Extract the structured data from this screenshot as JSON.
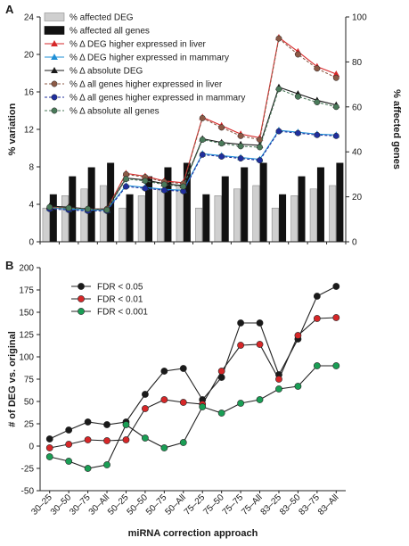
{
  "panel_labels": [
    "A",
    "B"
  ],
  "categories": [
    "30–25",
    "30–50",
    "30–75",
    "30–All",
    "50–25",
    "50–50",
    "50–75",
    "50–All",
    "75–25",
    "75–50",
    "75–75",
    "75–All",
    "83–25",
    "83–50",
    "83–75",
    "83–All"
  ],
  "chart_data": [
    {
      "panel": "A",
      "type": "bar",
      "ylabel": "% variation",
      "y2label": "% affected genes",
      "ylim": [
        0,
        24
      ],
      "yticks": [
        0,
        4,
        8,
        12,
        16,
        20,
        24
      ],
      "y2lim": [
        0,
        100
      ],
      "y2ticks": [
        0,
        20,
        40,
        60,
        80,
        100
      ],
      "legend_position": "top-left",
      "bar_series": [
        {
          "name": "% affected DEG",
          "color": "#cfcfcf",
          "axis": "right",
          "values": [
            15,
            20.5,
            23.5,
            25,
            15,
            20.5,
            23.5,
            25,
            15,
            20.5,
            23.5,
            25,
            15,
            20.5,
            23.5,
            25
          ]
        },
        {
          "name": "% affected all genes",
          "color": "#111111",
          "axis": "right",
          "values": [
            21,
            29,
            33,
            35,
            21,
            29,
            33,
            35,
            21,
            29,
            33,
            35,
            21,
            29,
            33,
            35
          ]
        }
      ],
      "line_series": [
        {
          "name": "% Δ DEG higher expressed in liver",
          "color": "#d62728",
          "marker": "triangle",
          "axis": "left",
          "values": [
            3.7,
            3.7,
            3.5,
            3.5,
            7.3,
            7.0,
            6.5,
            6.3,
            13.3,
            12.4,
            11.5,
            11.1,
            21.8,
            20.3,
            18.7,
            17.9
          ]
        },
        {
          "name": "% Δ DEG higher expressed in mammary",
          "color": "#1f8fd6",
          "marker": "triangle",
          "axis": "left",
          "values": [
            3.6,
            3.5,
            3.4,
            3.4,
            6.0,
            5.8,
            5.6,
            5.5,
            9.4,
            9.2,
            9.0,
            8.8,
            11.9,
            11.7,
            11.5,
            11.4
          ]
        },
        {
          "name": "% Δ absolute DEG",
          "color": "#1a1a1a",
          "marker": "triangle",
          "axis": "left",
          "values": [
            3.8,
            3.7,
            3.5,
            3.5,
            6.8,
            6.6,
            6.2,
            6.0,
            11.0,
            10.6,
            10.4,
            10.3,
            16.5,
            15.8,
            15.1,
            14.6
          ]
        },
        {
          "name": "% Δ all genes higher expressed in liver",
          "color": "#8c5a46",
          "marker": "circle",
          "axis": "left",
          "values": [
            3.6,
            3.6,
            3.5,
            3.5,
            7.2,
            6.9,
            6.4,
            6.2,
            13.2,
            12.2,
            11.3,
            10.9,
            21.7,
            20.0,
            18.5,
            17.5
          ]
        },
        {
          "name": "% Δ all genes higher expressed in mammary",
          "color": "#1f2f9e",
          "marker": "circle",
          "axis": "left",
          "values": [
            3.5,
            3.4,
            3.3,
            3.3,
            5.9,
            5.7,
            5.5,
            5.4,
            9.3,
            9.1,
            8.9,
            8.7,
            11.8,
            11.6,
            11.4,
            11.3
          ]
        },
        {
          "name": "% Δ absolute all genes",
          "color": "#4a7a5a",
          "marker": "circle",
          "axis": "left",
          "values": [
            3.7,
            3.6,
            3.5,
            3.4,
            6.7,
            6.5,
            6.1,
            5.9,
            10.9,
            10.5,
            10.2,
            10.1,
            16.3,
            15.5,
            14.9,
            14.4
          ]
        }
      ]
    },
    {
      "panel": "B",
      "type": "line",
      "xlabel": "miRNA correction approach",
      "ylabel": "# of DEG vs. original",
      "ylim": [
        -50,
        200
      ],
      "yticks": [
        -50,
        -25,
        0,
        25,
        50,
        75,
        100,
        125,
        150,
        175,
        200
      ],
      "legend_position": "top-left",
      "series": [
        {
          "name": "FDR < 0.05",
          "color": "#1a1a1a",
          "values": [
            8,
            18,
            27,
            24,
            27,
            58,
            84,
            87,
            52,
            77,
            138,
            138,
            80,
            120,
            168,
            179
          ]
        },
        {
          "name": "FDR < 0.01",
          "color": "#d62728",
          "values": [
            -2,
            2,
            7,
            6,
            7,
            42,
            52,
            49,
            47,
            84,
            113,
            114,
            75,
            124,
            143,
            144
          ]
        },
        {
          "name": "FDR < 0.001",
          "color": "#1a9e55",
          "values": [
            -12,
            -17,
            -25,
            -21,
            24,
            9,
            -2,
            4,
            44,
            37,
            48,
            52,
            64,
            67,
            90,
            90
          ]
        }
      ]
    }
  ]
}
